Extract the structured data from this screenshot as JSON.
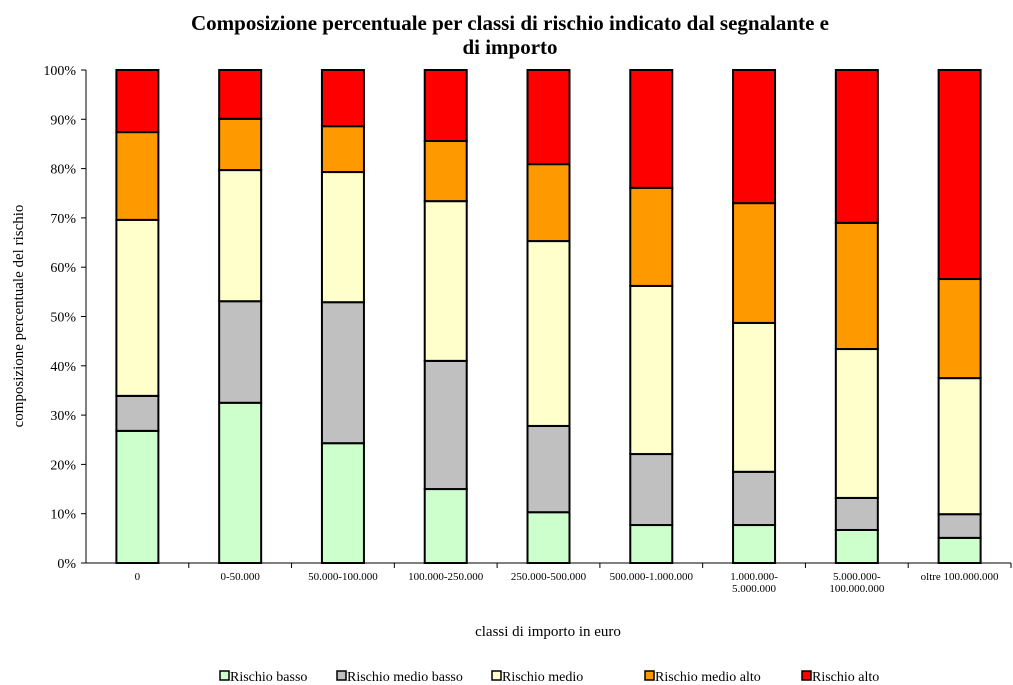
{
  "chart_data": {
    "type": "stacked_bar",
    "title": "Composizione percentuale per classi di rischio indicato dal segnalante e di importo",
    "x_label": "classi di importo in euro",
    "y_label": "composizione percentuale del rischio",
    "categories": [
      "0",
      "0-50.000",
      "50.000-100.000",
      "100.000-250.000",
      "250.000-500.000",
      "500.000-1.000.000",
      "1.000.000-5.000.000",
      "5.000.000-100.000.000",
      "oltre 100.000.000"
    ],
    "series": [
      {
        "name": "Rischio basso",
        "color": "#ccffcc",
        "values": [
          26.8,
          32.5,
          24.3,
          15.0,
          10.3,
          7.7,
          7.7,
          6.7,
          5.1
        ]
      },
      {
        "name": "Rischio medio basso",
        "color": "#c0c0c0",
        "values": [
          7.1,
          20.6,
          28.6,
          26.0,
          17.5,
          14.4,
          10.8,
          6.5,
          4.8
        ]
      },
      {
        "name": "Rischio medio",
        "color": "#ffffcc",
        "values": [
          35.7,
          26.6,
          26.4,
          32.4,
          37.5,
          34.1,
          30.2,
          30.2,
          27.6
        ]
      },
      {
        "name": "Rischio medio alto",
        "color": "#ff9900",
        "values": [
          17.8,
          10.4,
          9.3,
          12.2,
          15.6,
          19.9,
          24.3,
          25.6,
          20.1
        ]
      },
      {
        "name": "Rischio alto",
        "color": "#ff0000",
        "values": [
          12.6,
          9.9,
          11.4,
          14.4,
          19.1,
          23.9,
          27.0,
          31.0,
          42.4
        ]
      }
    ],
    "ylim": [
      0,
      100
    ],
    "yticks": [
      {
        "value": 0,
        "label": "0%"
      },
      {
        "value": 10,
        "label": "10%"
      },
      {
        "value": 20,
        "label": "20%"
      },
      {
        "value": 30,
        "label": "30%"
      },
      {
        "value": 40,
        "label": "40%"
      },
      {
        "value": 50,
        "label": "50%"
      },
      {
        "value": 60,
        "label": "60%"
      },
      {
        "value": 70,
        "label": "70%"
      },
      {
        "value": 80,
        "label": "80%"
      },
      {
        "value": 90,
        "label": "90%"
      },
      {
        "value": 100,
        "label": "100%"
      }
    ],
    "legend": "bottom"
  }
}
